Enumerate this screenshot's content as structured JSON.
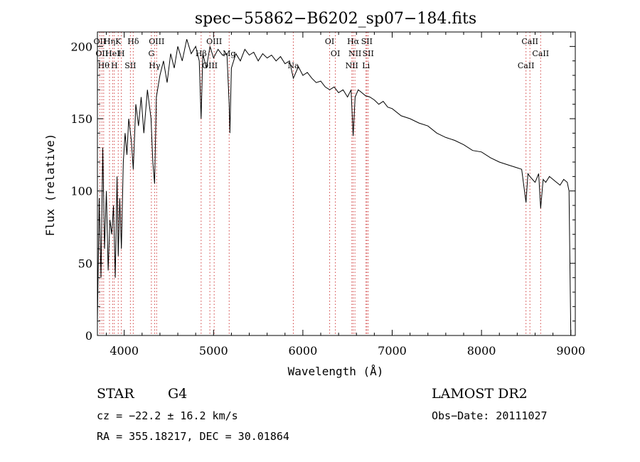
{
  "chart_data": {
    "type": "line",
    "title": "spec−55862−B6202_sp07−184.fits",
    "xlabel": "Wavelength (Å)",
    "ylabel": "Flux (relative)",
    "xlim": [
      3700,
      9050
    ],
    "ylim": [
      0,
      210
    ],
    "xticks": [
      4000,
      5000,
      6000,
      7000,
      8000,
      9000
    ],
    "yticks": [
      0,
      50,
      100,
      150,
      200
    ],
    "grid": false,
    "series": [
      {
        "x": [
          3700,
          3720,
          3740,
          3760,
          3780,
          3800,
          3820,
          3840,
          3860,
          3880,
          3900,
          3920,
          3933,
          3950,
          3968,
          3990,
          4010,
          4030,
          4050,
          4080,
          4101,
          4130,
          4160,
          4190,
          4220,
          4260,
          4300,
          4320,
          4340,
          4360,
          4400,
          4440,
          4480,
          4520,
          4560,
          4600,
          4650,
          4700,
          4750,
          4800,
          4840,
          4861,
          4880,
          4920,
          4960,
          5000,
          5050,
          5100,
          5150,
          5175,
          5183,
          5200,
          5250,
          5300,
          5350,
          5400,
          5450,
          5500,
          5550,
          5600,
          5650,
          5700,
          5750,
          5800,
          5850,
          5893,
          5950,
          6000,
          6050,
          6100,
          6150,
          6200,
          6250,
          6300,
          6350,
          6400,
          6450,
          6500,
          6540,
          6563,
          6585,
          6620,
          6660,
          6700,
          6750,
          6800,
          6850,
          6900,
          6950,
          7000,
          7100,
          7200,
          7300,
          7400,
          7500,
          7600,
          7700,
          7800,
          7900,
          8000,
          8100,
          8200,
          8300,
          8400,
          8450,
          8498,
          8520,
          8542,
          8570,
          8600,
          8640,
          8662,
          8690,
          8720,
          8760,
          8800,
          8840,
          8880,
          8920,
          8960,
          8980,
          9000
        ],
        "y": [
          10,
          95,
          40,
          130,
          60,
          100,
          45,
          80,
          70,
          90,
          40,
          110,
          55,
          95,
          60,
          120,
          140,
          125,
          150,
          135,
          115,
          160,
          145,
          165,
          140,
          170,
          150,
          120,
          105,
          165,
          180,
          190,
          175,
          195,
          185,
          200,
          190,
          205,
          195,
          200,
          190,
          150,
          195,
          185,
          200,
          192,
          198,
          194,
          195,
          160,
          140,
          185,
          195,
          190,
          198,
          194,
          196,
          190,
          195,
          192,
          194,
          190,
          193,
          188,
          190,
          178,
          186,
          180,
          182,
          178,
          175,
          176,
          172,
          170,
          172,
          168,
          170,
          165,
          170,
          138,
          165,
          170,
          168,
          166,
          165,
          163,
          160,
          162,
          158,
          157,
          152,
          150,
          147,
          145,
          140,
          137,
          135,
          132,
          128,
          127,
          123,
          120,
          118,
          116,
          115,
          92,
          112,
          110,
          108,
          106,
          112,
          88,
          108,
          106,
          110,
          108,
          106,
          104,
          108,
          106,
          100,
          0
        ]
      }
    ],
    "line_markers": [
      {
        "wl": 3727,
        "label": "OII"
      },
      {
        "wl": 3750,
        "label": "OII"
      },
      {
        "wl": 3770,
        "label": "Hθ"
      },
      {
        "wl": 3835,
        "label": "Hη"
      },
      {
        "wl": 3870,
        "label": "HeI"
      },
      {
        "wl": 3889,
        "label": "H"
      },
      {
        "wl": 3933,
        "label": "K"
      },
      {
        "wl": 3968,
        "label": "H"
      },
      {
        "wl": 4069,
        "label": "SII"
      },
      {
        "wl": 4101,
        "label": "Hδ"
      },
      {
        "wl": 4304,
        "label": "G"
      },
      {
        "wl": 4340,
        "label": "Hγ"
      },
      {
        "wl": 4363,
        "label": "OIII"
      },
      {
        "wl": 4861,
        "label": "Hβ"
      },
      {
        "wl": 4959,
        "label": "OIII"
      },
      {
        "wl": 5007,
        "label": "OIII"
      },
      {
        "wl": 5175,
        "label": "Mg"
      },
      {
        "wl": 5893,
        "label": "Na"
      },
      {
        "wl": 6300,
        "label": "OI"
      },
      {
        "wl": 6364,
        "label": "OI"
      },
      {
        "wl": 6548,
        "label": "NII"
      },
      {
        "wl": 6563,
        "label": "Hα"
      },
      {
        "wl": 6583,
        "label": "NII"
      },
      {
        "wl": 6707,
        "label": "Li"
      },
      {
        "wl": 6716,
        "label": "SII"
      },
      {
        "wl": 6731,
        "label": "SII"
      },
      {
        "wl": 8498,
        "label": "CaII"
      },
      {
        "wl": 8542,
        "label": "CaII"
      },
      {
        "wl": 8662,
        "label": "CaII"
      }
    ]
  },
  "info": {
    "class": "STAR",
    "subclass": "G4",
    "survey": "LAMOST  DR2",
    "cz": "cz = −22.2 ± 16.2 km/s",
    "obs_date": "Obs−Date: 20111027",
    "radec": "RA = 355.18217, DEC =  30.01864"
  }
}
